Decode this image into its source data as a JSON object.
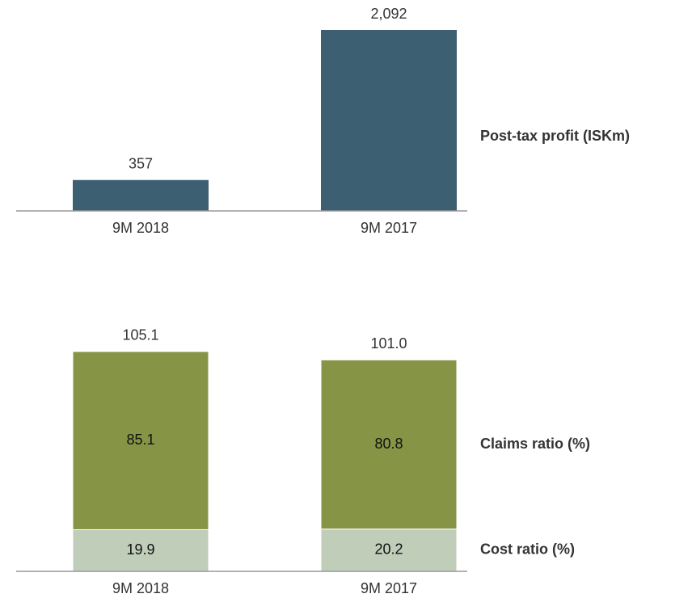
{
  "chart_data": [
    {
      "type": "bar",
      "categories": [
        "9M 2018",
        "9M 2017"
      ],
      "series": [
        {
          "name": "Post-tax profit (ISKm)",
          "color": "#3d5f72",
          "values": [
            357,
            2092
          ],
          "value_labels": [
            "357",
            "2,092"
          ]
        }
      ]
    },
    {
      "type": "stacked-bar",
      "categories": [
        "9M 2018",
        "9M 2017"
      ],
      "series": [
        {
          "name": "Cost ratio (%)",
          "color": "#bfcdb9",
          "values": [
            19.9,
            20.2
          ]
        },
        {
          "name": "Claims ratio (%)",
          "color": "#869445",
          "values": [
            85.1,
            80.8
          ]
        }
      ],
      "totals": [
        105.1,
        101.0
      ],
      "total_labels": [
        "105.1",
        "101.0"
      ]
    }
  ]
}
